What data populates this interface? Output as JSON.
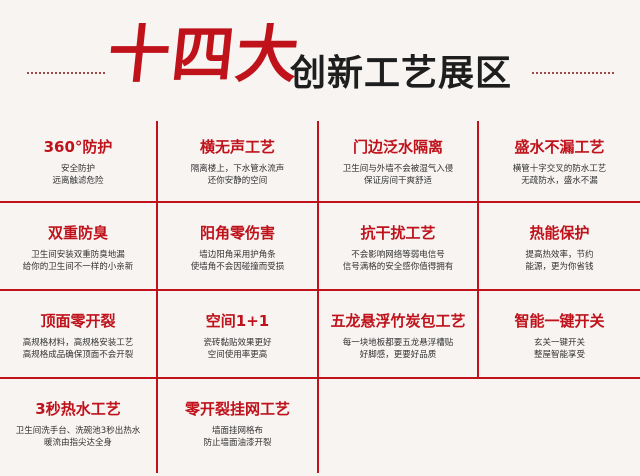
{
  "header": {
    "title_big": "十四大",
    "title_rest": "创新工艺展区"
  },
  "cells": [
    {
      "title": "360°防护",
      "desc": "安全防护\n远离触滤危险"
    },
    {
      "title": "横无声工艺",
      "desc": "隔离楼上，下水管水流声\n还你安静的空间"
    },
    {
      "title": "门边泛水隔离",
      "desc": "卫生间与外墙不会被湿气入侵\n保证房间干爽舒适"
    },
    {
      "title": "盛水不漏工艺",
      "desc": "横管十字交叉的防水工艺\n无疏防水，盛水不漏"
    },
    {
      "title": "双重防臭",
      "desc": "卫生间安装双重防臭地漏\n给你的卫生间不一样的小亲新"
    },
    {
      "title": "阳角零伤害",
      "desc": "墙边阳角采用护角条\n使墙角不会因碰撞而受损"
    },
    {
      "title": "抗干扰工艺",
      "desc": "不会影响网络等弱电信号\n信号满格的安全感你值得拥有"
    },
    {
      "title": "热能保护",
      "desc": "提高热效率，节约\n能源，更为你省钱"
    },
    {
      "title": "顶面零开裂",
      "desc": "高规格材料，高规格安装工艺\n高规格成品确保顶面不会开裂"
    },
    {
      "title": "空间1+1",
      "desc": "瓷砖黏贴效果更好\n空间使用率更高"
    },
    {
      "title": "五龙悬浮竹炭包工艺",
      "desc": "每一块地板都要五龙悬浮槽贴\n好脚感，更要好品质"
    },
    {
      "title": "智能一键开关",
      "desc": "玄关一键开关\n整屋智能享受"
    },
    {
      "title": "3秒热水工艺",
      "desc": "卫生间洗手台、洗碗池3秒出热水\n暖流由指尖达全身"
    },
    {
      "title": "零开裂挂网工艺",
      "desc": "墙面挂网格布\n防止墙面油漆开裂"
    }
  ],
  "colors": {
    "accent": "#c0121b",
    "background": "#f7f4f2",
    "text": "#333333"
  }
}
